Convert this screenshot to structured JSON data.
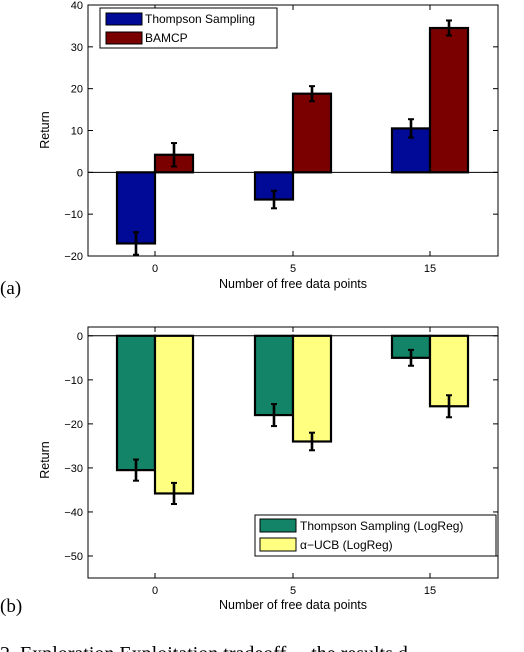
{
  "chart_data": [
    {
      "type": "bar",
      "panel_label": "(a)",
      "categories": [
        "0",
        "5",
        "15"
      ],
      "series": [
        {
          "name": "Thompson Sampling",
          "values": [
            -17,
            -6.5,
            10.5
          ],
          "errors": [
            2.7,
            2.1,
            2.2
          ],
          "color": "#000a96"
        },
        {
          "name": "BAMCP",
          "values": [
            4.2,
            18.8,
            34.5
          ],
          "errors": [
            2.8,
            1.8,
            1.8
          ],
          "color": "#7a0000"
        }
      ],
      "xlabel": "Number of free data points",
      "ylabel": "Return",
      "ylim": [
        -20,
        40
      ],
      "yticks": [
        "40",
        "30",
        "20",
        "10",
        "0",
        "−10",
        "−20"
      ],
      "legend_position": "top-left",
      "grid": false
    },
    {
      "type": "bar",
      "panel_label": "(b)",
      "categories": [
        "0",
        "5",
        "15"
      ],
      "series": [
        {
          "name": "Thompson Sampling (LogReg)",
          "values": [
            -30.5,
            -18,
            -5
          ],
          "errors": [
            2.4,
            2.5,
            1.8
          ],
          "color": "#138467"
        },
        {
          "name": "α−UCB (LogReg)",
          "values": [
            -35.8,
            -24,
            -16
          ],
          "errors": [
            2.4,
            2.0,
            2.5
          ],
          "color": "#ffff80"
        }
      ],
      "xlabel": "Number of free data points",
      "ylabel": "Return",
      "ylim": [
        -55,
        2
      ],
      "yticks": [
        "0",
        "−10",
        "−20",
        "−30",
        "−40",
        "−50"
      ],
      "legend_position": "bottom-right",
      "grid": false
    }
  ],
  "caption_fragment": "2.  Exploration  Exploitation  tradeoff  ...  the  results  d"
}
